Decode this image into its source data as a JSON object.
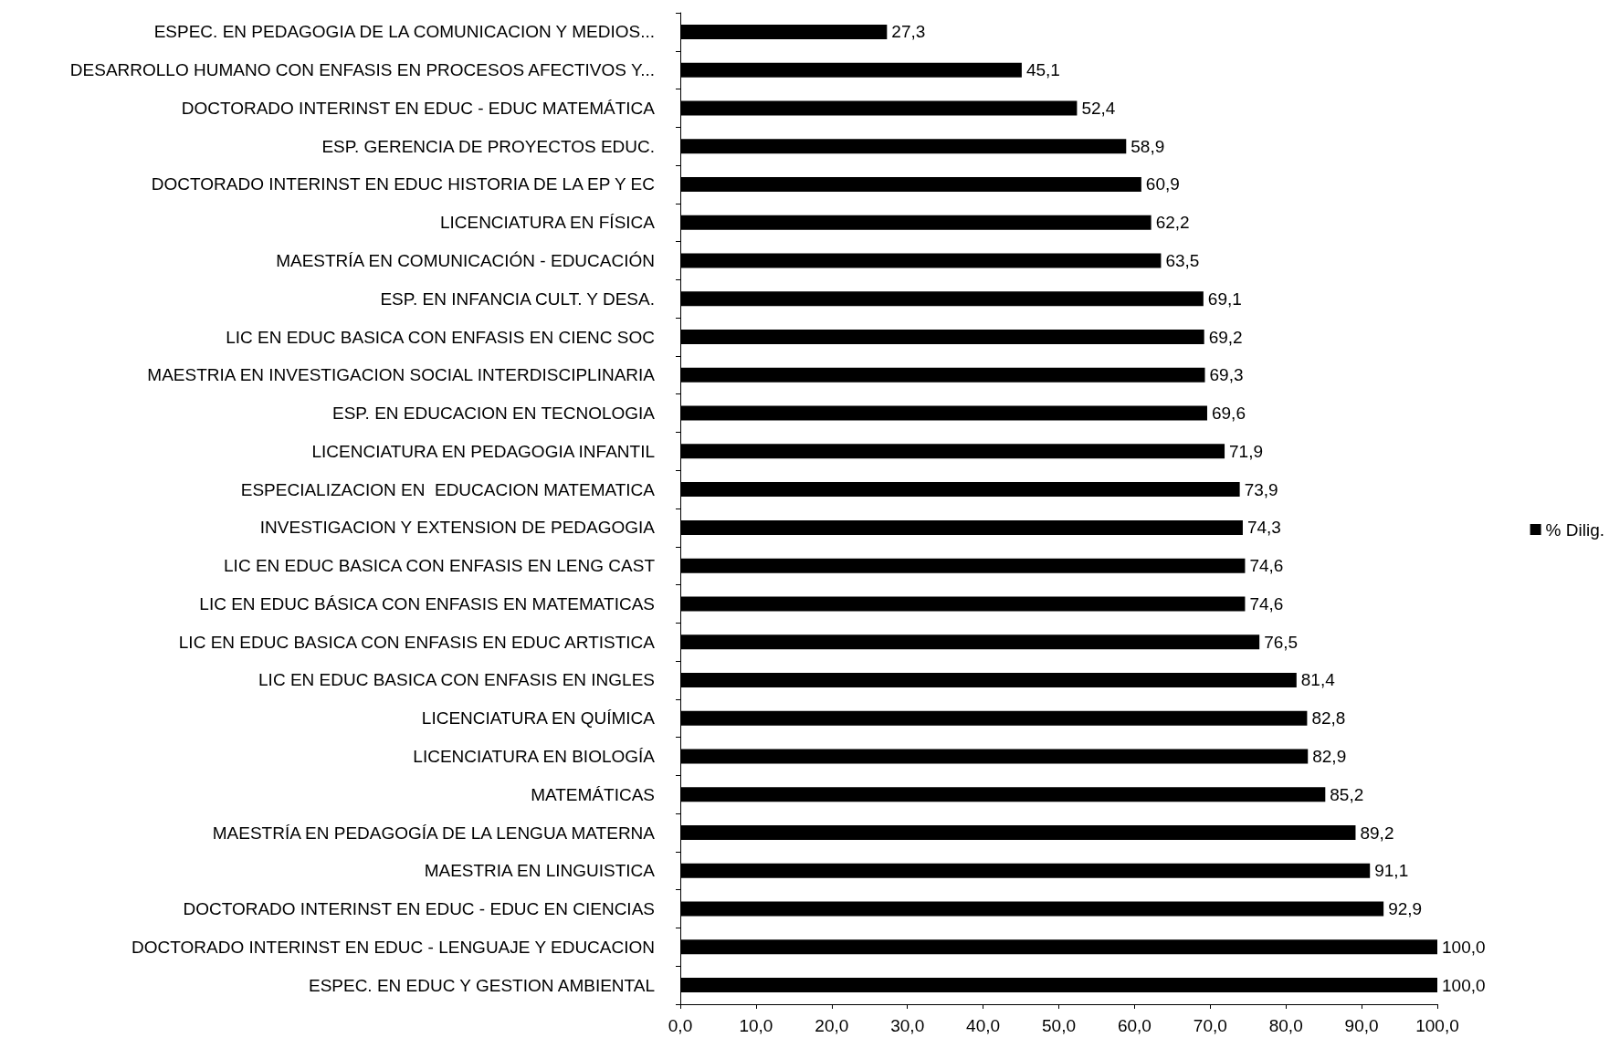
{
  "chart_data": {
    "type": "bar",
    "orientation": "horizontal",
    "categories": [
      "ESPEC. EN PEDAGOGIA DE LA COMUNICACION Y MEDIOS...",
      "DESARROLLO HUMANO CON ENFASIS EN PROCESOS AFECTIVOS Y...",
      "DOCTORADO INTERINST EN EDUC - EDUC MATEMÁTICA",
      "ESP. GERENCIA DE PROYECTOS EDUC.",
      "DOCTORADO INTERINST EN EDUC HISTORIA DE LA EP Y EC",
      "LICENCIATURA EN FÍSICA",
      "MAESTRÍA EN COMUNICACIÓN - EDUCACIÓN",
      "ESP. EN INFANCIA CULT. Y DESA.",
      "LIC EN EDUC BASICA CON ENFASIS EN CIENC SOC",
      "MAESTRIA EN INVESTIGACION SOCIAL INTERDISCIPLINARIA",
      "ESP. EN EDUCACION EN TECNOLOGIA",
      "LICENCIATURA EN PEDAGOGIA INFANTIL",
      "ESPECIALIZACION EN  EDUCACION MATEMATICA",
      "INVESTIGACION Y EXTENSION DE PEDAGOGIA",
      "LIC EN EDUC BASICA CON ENFASIS EN LENG CAST",
      "LIC EN EDUC BÁSICA CON ENFASIS EN MATEMATICAS",
      "LIC EN EDUC BASICA CON ENFASIS EN EDUC ARTISTICA",
      "LIC EN EDUC BASICA CON ENFASIS EN INGLES",
      "LICENCIATURA EN QUÍMICA",
      "LICENCIATURA EN BIOLOGÍA",
      "MATEMÁTICAS",
      "MAESTRÍA EN PEDAGOGÍA DE LA LENGUA MATERNA",
      "MAESTRIA EN LINGUISTICA",
      "DOCTORADO INTERINST EN EDUC - EDUC EN CIENCIAS",
      "DOCTORADO INTERINST EN EDUC - LENGUAJE Y EDUCACION",
      "ESPEC. EN EDUC Y GESTION AMBIENTAL"
    ],
    "series": [
      {
        "name": "% Dilig.",
        "color": "#000000",
        "values": [
          27.3,
          45.1,
          52.4,
          58.9,
          60.9,
          62.2,
          63.5,
          69.1,
          69.2,
          69.3,
          69.6,
          71.9,
          73.9,
          74.3,
          74.6,
          74.6,
          76.5,
          81.4,
          82.8,
          82.9,
          85.2,
          89.2,
          91.1,
          92.9,
          100.0,
          100.0
        ],
        "value_labels": [
          "27,3",
          "45,1",
          "52,4",
          "58,9",
          "60,9",
          "62,2",
          "63,5",
          "69,1",
          "69,2",
          "69,3",
          "69,6",
          "71,9",
          "73,9",
          "74,3",
          "74,6",
          "74,6",
          "76,5",
          "81,4",
          "82,8",
          "82,9",
          "85,2",
          "89,2",
          "91,1",
          "92,9",
          "100,0",
          "100,0"
        ]
      }
    ],
    "xlim": [
      0,
      100
    ],
    "xticks": [
      {
        "value": 0,
        "label": "0,0"
      },
      {
        "value": 10,
        "label": "10,0"
      },
      {
        "value": 20,
        "label": "20,0"
      },
      {
        "value": 30,
        "label": "30,0"
      },
      {
        "value": 40,
        "label": "40,0"
      },
      {
        "value": 50,
        "label": "50,0"
      },
      {
        "value": 60,
        "label": "60,0"
      },
      {
        "value": 70,
        "label": "70,0"
      },
      {
        "value": 80,
        "label": "80,0"
      },
      {
        "value": 90,
        "label": "90,0"
      },
      {
        "value": 100,
        "label": "100,0"
      }
    ],
    "legend": "right",
    "grid": false
  }
}
